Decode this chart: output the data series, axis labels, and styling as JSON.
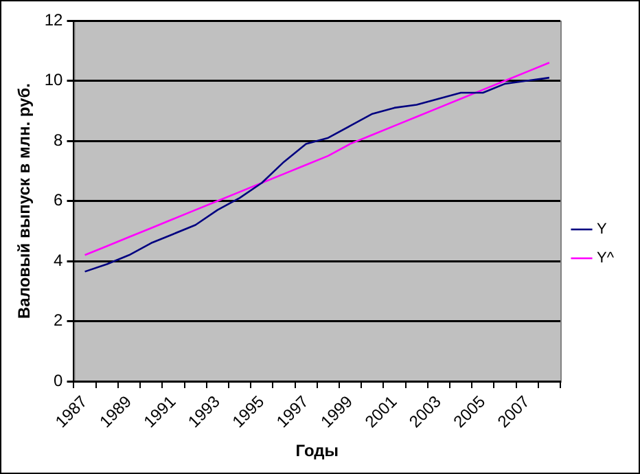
{
  "chart_data": {
    "type": "line",
    "xlabel": "Годы",
    "ylabel": "Валовый выпуск в млн. руб.",
    "categories": [
      "1987",
      null,
      "1989",
      null,
      "1991",
      null,
      "1993",
      null,
      "1995",
      null,
      "1997",
      null,
      "1999",
      null,
      "2001",
      null,
      "2003",
      null,
      "2005",
      null,
      "2007",
      null
    ],
    "series": [
      {
        "name": "Y",
        "color": "#000080",
        "values": [
          3.65,
          3.9,
          4.2,
          4.6,
          4.9,
          5.2,
          5.7,
          6.1,
          6.6,
          7.3,
          7.9,
          8.1,
          8.5,
          8.9,
          9.1,
          9.2,
          9.4,
          9.6,
          9.6,
          9.9,
          10.0,
          10.1
        ]
      },
      {
        "name": "Y^",
        "color": "#ff00ff",
        "values": [
          4.2,
          4.5,
          4.8,
          5.1,
          5.4,
          5.7,
          6.0,
          6.3,
          6.6,
          6.9,
          7.2,
          7.5,
          7.9,
          8.2,
          8.5,
          8.8,
          9.1,
          9.4,
          9.7,
          10.0,
          10.3,
          10.6
        ]
      }
    ],
    "ylim": [
      0,
      12
    ],
    "yticks": [
      0,
      2,
      4,
      6,
      8,
      10,
      12
    ],
    "grid": "y",
    "legend": "right",
    "marker": "none",
    "line_style": "solid"
  }
}
